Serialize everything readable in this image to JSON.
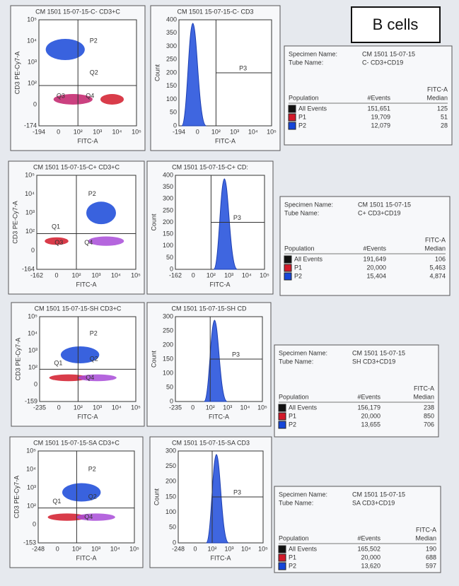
{
  "header": {
    "title": "B cells"
  },
  "rows": [
    {
      "scatter": {
        "title": "CM 1501  15-07-15-C- CD3+C",
        "y_label": "CD3 PE-Cy7-A",
        "x_label": "FITC-A",
        "y_ticks": [
          "-174",
          "0",
          "10²",
          "10³",
          "10⁴",
          "10⁵"
        ],
        "x_ticks": [
          "-194",
          "0",
          "10²",
          "10³",
          "10⁴",
          "10⁵"
        ],
        "gates": [
          "P2",
          "Q2",
          "Q3",
          "Q4"
        ]
      },
      "histogram": {
        "title": "CM 1501  15-07-15-C- CD3",
        "y_label": "Count",
        "x_label": "FITC-A",
        "y_ticks": [
          "0",
          "50",
          "100",
          "150",
          "200",
          "250",
          "300",
          "350",
          "400"
        ],
        "x_ticks": [
          "-194",
          "0",
          "10²",
          "10³",
          "10⁴",
          "10⁵"
        ],
        "gate": "P3"
      },
      "stats": {
        "specimen_label": "Specimen Name:",
        "specimen": "CM 1501  15-07-15",
        "tube_label": "Tube Name:",
        "tube": "C- CD3+CD19",
        "columns": [
          "Population",
          "#Events",
          "FITC-A",
          "Median"
        ],
        "rows": [
          [
            "All Events",
            "151,651",
            "125"
          ],
          [
            "P1",
            "19,709",
            "51"
          ],
          [
            "P2",
            "12,079",
            "28"
          ]
        ]
      }
    },
    {
      "scatter": {
        "title": "CM 1501  15-07-15-C+ CD3+C",
        "y_label": "CD3 PE-Cy7-A",
        "x_label": "FITC-A",
        "y_ticks": [
          "-164",
          "0",
          "10²",
          "10³",
          "10⁴",
          "10⁵"
        ],
        "x_ticks": [
          "-162",
          "0",
          "10²",
          "10³",
          "10⁴",
          "10⁵"
        ],
        "gates": [
          "P2",
          "Q1",
          "Q3",
          "Q4"
        ]
      },
      "histogram": {
        "title": "CM 1501  15-07-15-C+ CD:",
        "y_label": "Count",
        "x_label": "FITC-A",
        "y_ticks": [
          "0",
          "50",
          "100",
          "150",
          "200",
          "250",
          "300",
          "350",
          "400"
        ],
        "x_ticks": [
          "-162",
          "0",
          "10²",
          "10³",
          "10⁴",
          "10⁵"
        ],
        "gate": "P3"
      },
      "stats": {
        "specimen_label": "Specimen Name:",
        "specimen": "CM 1501  15-07-15",
        "tube_label": "Tube Name:",
        "tube": "C+ CD3+CD19",
        "columns": [
          "Population",
          "#Events",
          "FITC-A",
          "Median"
        ],
        "rows": [
          [
            "All Events",
            "191,649",
            "106"
          ],
          [
            "P1",
            "20,000",
            "5,463"
          ],
          [
            "P2",
            "15,404",
            "4,874"
          ]
        ]
      }
    },
    {
      "scatter": {
        "title": "CM 1501  15-07-15-SH CD3+C",
        "y_label": "CD3 PE-Cy7-A",
        "x_label": "FITC-A",
        "y_ticks": [
          "-159",
          "0",
          "10²",
          "10³",
          "10⁴",
          "10⁵"
        ],
        "x_ticks": [
          "-235",
          "0",
          "10²",
          "10³",
          "10⁴",
          "10⁵"
        ],
        "gates": [
          "P2",
          "Q1",
          "Q2",
          "Q4"
        ]
      },
      "histogram": {
        "title": "CM 1501  15-07-15-SH CD",
        "y_label": "Count",
        "x_label": "FITC-A",
        "y_ticks": [
          "0",
          "50",
          "100",
          "150",
          "200",
          "250",
          "300"
        ],
        "x_ticks": [
          "-235",
          "0",
          "10²",
          "10³",
          "10⁴",
          "10⁵"
        ],
        "gate": "P3"
      },
      "stats": {
        "specimen_label": "Specimen Name:",
        "specimen": "CM 1501  15-07-15",
        "tube_label": "Tube Name:",
        "tube": "SH CD3+CD19",
        "columns": [
          "Population",
          "#Events",
          "FITC-A",
          "Median"
        ],
        "rows": [
          [
            "All Events",
            "156,179",
            "238"
          ],
          [
            "P1",
            "20,000",
            "850"
          ],
          [
            "P2",
            "13,655",
            "706"
          ]
        ]
      }
    },
    {
      "scatter": {
        "title": "CM 1501  15-07-15-SA CD3+C",
        "y_label": "CD3 PE-Cy7-A",
        "x_label": "FITC-A",
        "y_ticks": [
          "-153",
          "0",
          "10²",
          "10³",
          "10⁴",
          "10⁵"
        ],
        "x_ticks": [
          "-248",
          "0",
          "10²",
          "10³",
          "10⁴",
          "10⁵"
        ],
        "gates": [
          "P2",
          "Q1",
          "Q2",
          "Q4"
        ]
      },
      "histogram": {
        "title": "CM 1501  15-07-15-SA CD3",
        "y_label": "Count",
        "x_label": "FITC-A",
        "y_ticks": [
          "0",
          "50",
          "100",
          "150",
          "200",
          "250",
          "300"
        ],
        "x_ticks": [
          "-248",
          "0",
          "10²",
          "10³",
          "10⁴",
          "10⁵"
        ],
        "gate": "P3"
      },
      "stats": {
        "specimen_label": "Specimen Name:",
        "specimen": "CM 1501  15-07-15",
        "tube_label": "Tube Name:",
        "tube": "SA CD3+CD19",
        "columns": [
          "Population",
          "#Events",
          "FITC-A",
          "Median"
        ],
        "rows": [
          [
            "All Events",
            "165,502",
            "190"
          ],
          [
            "P1",
            "20,000",
            "688"
          ],
          [
            "P2",
            "13,620",
            "597"
          ]
        ]
      }
    }
  ]
}
